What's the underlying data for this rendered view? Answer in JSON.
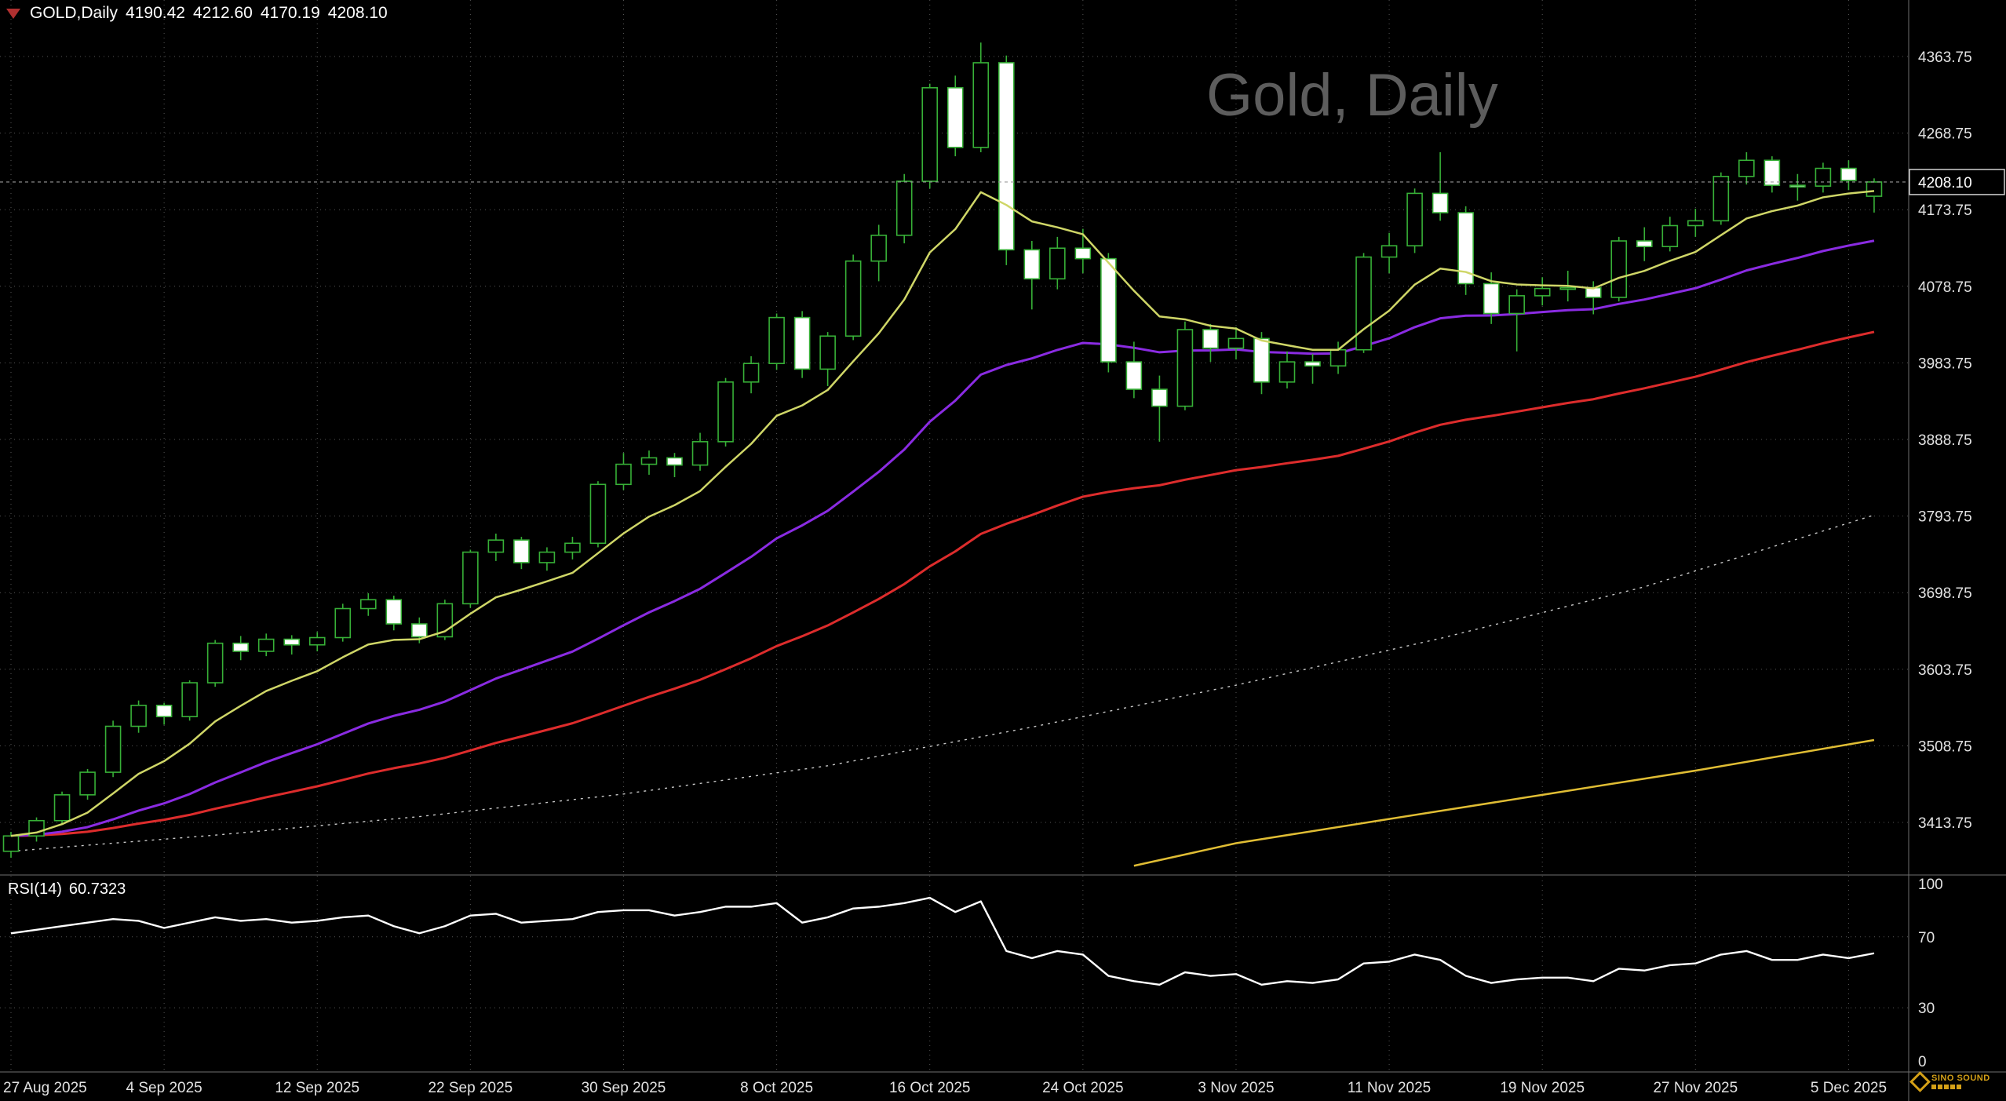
{
  "header": {
    "symbol_period": "GOLD,Daily",
    "open": "4190.42",
    "high": "4212.60",
    "low": "4170.19",
    "close": "4208.10"
  },
  "watermark": "Gold, Daily",
  "indicator": {
    "label": "RSI(14)",
    "value": "60.7323"
  },
  "brand": {
    "name": "SINO SOUND"
  },
  "axes": {
    "price_labels": [
      "4363.75",
      "4268.75",
      "4173.75",
      "4078.75",
      "3983.75",
      "3888.75",
      "3793.75",
      "3698.75",
      "3603.75",
      "3508.75",
      "3413.75"
    ],
    "current_price": "4208.10",
    "date_labels": [
      {
        "text": "27 Aug 2025",
        "i": 0
      },
      {
        "text": "4 Sep 2025",
        "i": 6
      },
      {
        "text": "12 Sep 2025",
        "i": 12
      },
      {
        "text": "22 Sep 2025",
        "i": 18
      },
      {
        "text": "30 Sep 2025",
        "i": 24
      },
      {
        "text": "8 Oct 2025",
        "i": 30
      },
      {
        "text": "16 Oct 2025",
        "i": 36
      },
      {
        "text": "24 Oct 2025",
        "i": 42
      },
      {
        "text": "3 Nov 2025",
        "i": 48
      },
      {
        "text": "11 Nov 2025",
        "i": 54
      },
      {
        "text": "19 Nov 2025",
        "i": 60
      },
      {
        "text": "27 Nov 2025",
        "i": 66
      },
      {
        "text": "5 Dec 2025",
        "i": 72
      }
    ],
    "rsi_labels": [
      {
        "text": "100",
        "v": 100
      },
      {
        "text": "70",
        "v": 70
      },
      {
        "text": "30",
        "v": 30
      },
      {
        "text": "0",
        "v": 0
      }
    ]
  },
  "chart_data": {
    "type": "candlestick",
    "symbol": "GOLD",
    "timeframe": "Daily",
    "title": "Gold, Daily",
    "ylim": [
      3350,
      4434
    ],
    "price_grid_step": 95,
    "candles": [
      [
        3378,
        3402,
        3370,
        3397
      ],
      [
        3397,
        3420,
        3390,
        3416
      ],
      [
        3416,
        3452,
        3412,
        3448
      ],
      [
        3448,
        3480,
        3442,
        3476
      ],
      [
        3476,
        3540,
        3470,
        3533
      ],
      [
        3533,
        3565,
        3525,
        3559
      ],
      [
        3559,
        3562,
        3535,
        3545
      ],
      [
        3545,
        3590,
        3540,
        3587
      ],
      [
        3587,
        3640,
        3582,
        3636
      ],
      [
        3636,
        3645,
        3615,
        3626
      ],
      [
        3626,
        3648,
        3620,
        3641
      ],
      [
        3641,
        3646,
        3622,
        3634
      ],
      [
        3634,
        3650,
        3626,
        3643
      ],
      [
        3643,
        3685,
        3638,
        3679
      ],
      [
        3679,
        3698,
        3670,
        3690
      ],
      [
        3690,
        3695,
        3652,
        3660
      ],
      [
        3660,
        3668,
        3636,
        3644
      ],
      [
        3644,
        3690,
        3640,
        3685
      ],
      [
        3685,
        3752,
        3680,
        3749
      ],
      [
        3749,
        3772,
        3738,
        3764
      ],
      [
        3764,
        3768,
        3728,
        3736
      ],
      [
        3736,
        3755,
        3726,
        3749
      ],
      [
        3749,
        3768,
        3740,
        3760
      ],
      [
        3760,
        3837,
        3755,
        3833
      ],
      [
        3833,
        3872,
        3826,
        3858
      ],
      [
        3858,
        3875,
        3845,
        3866
      ],
      [
        3866,
        3872,
        3842,
        3857
      ],
      [
        3857,
        3897,
        3850,
        3886
      ],
      [
        3886,
        3965,
        3880,
        3960
      ],
      [
        3960,
        3992,
        3946,
        3983
      ],
      [
        3983,
        4045,
        3975,
        4040
      ],
      [
        4040,
        4048,
        3965,
        3976
      ],
      [
        3976,
        4022,
        3955,
        4017
      ],
      [
        4017,
        4118,
        4012,
        4110
      ],
      [
        4110,
        4155,
        4085,
        4142
      ],
      [
        4142,
        4218,
        4132,
        4209
      ],
      [
        4209,
        4330,
        4200,
        4325
      ],
      [
        4325,
        4340,
        4240,
        4251
      ],
      [
        4251,
        4381,
        4245,
        4356
      ],
      [
        4356,
        4365,
        4105,
        4124
      ],
      [
        4124,
        4135,
        4050,
        4088
      ],
      [
        4088,
        4140,
        4075,
        4126
      ],
      [
        4126,
        4150,
        4095,
        4113
      ],
      [
        4113,
        4120,
        3972,
        3985
      ],
      [
        3985,
        4010,
        3940,
        3951
      ],
      [
        3951,
        3968,
        3886,
        3930
      ],
      [
        3930,
        4035,
        3925,
        4025
      ],
      [
        4025,
        4032,
        3985,
        4002
      ],
      [
        4002,
        4028,
        3988,
        4014
      ],
      [
        4014,
        4022,
        3945,
        3960
      ],
      [
        3960,
        3998,
        3952,
        3985
      ],
      [
        3985,
        3995,
        3958,
        3980
      ],
      [
        3980,
        4010,
        3970,
        4000
      ],
      [
        4000,
        4120,
        3996,
        4115
      ],
      [
        4115,
        4145,
        4095,
        4129
      ],
      [
        4129,
        4200,
        4120,
        4194
      ],
      [
        4194,
        4245,
        4160,
        4170
      ],
      [
        4170,
        4178,
        4068,
        4082
      ],
      [
        4082,
        4096,
        4032,
        4045
      ],
      [
        4045,
        4075,
        3998,
        4067
      ],
      [
        4067,
        4090,
        4055,
        4076
      ],
      [
        4076,
        4098,
        4060,
        4077
      ],
      [
        4077,
        4085,
        4044,
        4065
      ],
      [
        4065,
        4140,
        4060,
        4135
      ],
      [
        4135,
        4152,
        4110,
        4128
      ],
      [
        4128,
        4165,
        4122,
        4154
      ],
      [
        4154,
        4175,
        4140,
        4160
      ],
      [
        4160,
        4220,
        4155,
        4215
      ],
      [
        4215,
        4245,
        4205,
        4235
      ],
      [
        4235,
        4240,
        4195,
        4204
      ],
      [
        4204,
        4218,
        4185,
        4203
      ],
      [
        4203,
        4232,
        4195,
        4225
      ],
      [
        4225,
        4235,
        4198,
        4210
      ],
      [
        4190.42,
        4212.6,
        4170.19,
        4208.1
      ]
    ],
    "overlays": [
      {
        "name": "ma-long-dotted",
        "type": "points",
        "style": "dashed",
        "color": "#c9c9c9",
        "width": 1.4,
        "above": false,
        "points": [
          [
            0,
            3378
          ],
          [
            8,
            3398
          ],
          [
            16,
            3421
          ],
          [
            24,
            3449
          ],
          [
            32,
            3484
          ],
          [
            40,
            3532
          ],
          [
            48,
            3584
          ],
          [
            56,
            3642
          ],
          [
            64,
            3706
          ],
          [
            73,
            3795
          ]
        ]
      },
      {
        "name": "ma-200",
        "type": "points",
        "style": "solid",
        "color": "#e0bd34",
        "width": 2.5,
        "above": false,
        "points": [
          [
            44,
            3360
          ],
          [
            48,
            3388
          ],
          [
            54,
            3418
          ],
          [
            60,
            3448
          ],
          [
            66,
            3478
          ],
          [
            73,
            3516
          ]
        ]
      },
      {
        "name": "ma-slow",
        "type": "ema",
        "period": 55,
        "color": "#dd2c2c",
        "width": 3,
        "above": false
      },
      {
        "name": "ma-mid",
        "type": "ema",
        "period": 25,
        "color": "#8a2be2",
        "width": 3,
        "above": false
      },
      {
        "name": "ma-fast",
        "type": "ema",
        "period": 8,
        "color": "#cfd667",
        "width": 2.5,
        "above": true
      }
    ],
    "rsi": {
      "label": "RSI(14)",
      "period": 14,
      "value": 60.7323,
      "range": [
        0,
        100
      ],
      "levels": [
        70,
        30
      ],
      "values": [
        72,
        74,
        76,
        78,
        80,
        79,
        75,
        78,
        81,
        79,
        80,
        78,
        79,
        81,
        82,
        76,
        72,
        76,
        82,
        83,
        78,
        79,
        80,
        84,
        85,
        85,
        82,
        84,
        87,
        87,
        89,
        78,
        81,
        86,
        87,
        89,
        92,
        84,
        90,
        62,
        58,
        62,
        60,
        48,
        45,
        43,
        50,
        48,
        49,
        43,
        45,
        44,
        46,
        55,
        56,
        60,
        57,
        48,
        44,
        46,
        47,
        47,
        45,
        52,
        51,
        54,
        55,
        60,
        62,
        57,
        57,
        60,
        58,
        60.73
      ]
    }
  },
  "colors": {
    "background": "#000000",
    "grid": "#565656",
    "axis_text": "#e2e2e2",
    "separator": "#6f6f6f",
    "candle_outline": "#37b037",
    "bull_body": "#000000",
    "bear_body": "#ffffff",
    "rsi_line": "#ffffff",
    "current_price_line": "#9a9a9a",
    "current_price_box": "#d0d0d0",
    "watermark": "#5d5d5d",
    "brand_gold": "#d4a017",
    "corner_icon": "#b03030"
  }
}
